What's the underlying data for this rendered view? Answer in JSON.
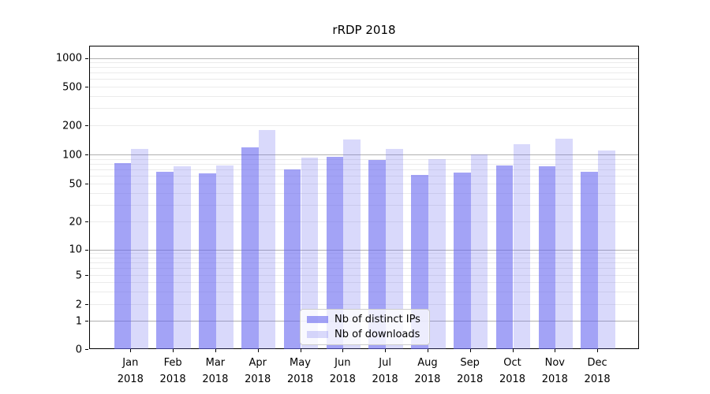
{
  "title": "rRDP 2018",
  "chart_data": {
    "type": "bar",
    "title": "rRDP 2018",
    "categories": [
      "Jan",
      "Feb",
      "Mar",
      "Apr",
      "May",
      "Jun",
      "Jul",
      "Aug",
      "Sep",
      "Oct",
      "Nov",
      "Dec"
    ],
    "category_year": "2018",
    "series": [
      {
        "name": "Nb of distinct IPs",
        "color": "rgba(102,102,240,0.6)",
        "values": [
          81,
          67,
          64,
          118,
          70,
          95,
          87,
          62,
          65,
          77,
          75,
          67
        ]
      },
      {
        "name": "Nb of downloads",
        "color": "rgba(102,102,240,0.25)",
        "values": [
          114,
          75,
          77,
          180,
          92,
          142,
          114,
          90,
          100,
          128,
          147,
          109
        ]
      }
    ],
    "xlabel": "",
    "ylabel": "",
    "yscale": "symlog",
    "ytick_labels": [
      "0",
      "1",
      "2",
      "5",
      "10",
      "20",
      "50",
      "100",
      "200",
      "500",
      "1000"
    ],
    "ylim": [
      0,
      1400
    ],
    "grid": "horizontal",
    "legend_position": "lower center",
    "colors": {
      "bar_dark": "rgba(102,102,240,0.6)",
      "bar_light": "rgba(102,102,240,0.25)",
      "grid_major": "#b0b0b0",
      "grid_minor": "#ebebeb",
      "axis": "#000000"
    }
  }
}
